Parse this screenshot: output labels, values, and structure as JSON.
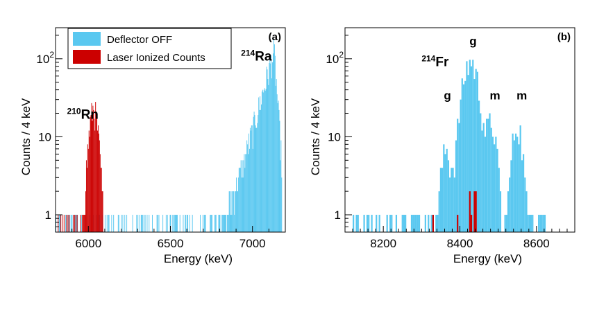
{
  "chart_data": [
    {
      "panel": "a",
      "type": "histogram",
      "title": "",
      "panel_label": "(a)",
      "xlabel": "Energy (keV)",
      "ylabel": "Counts / 4 keV",
      "xlim": [
        5800,
        7200
      ],
      "ylim": [
        0.6,
        250
      ],
      "yscale": "log",
      "bin_width": 4,
      "xticks": [
        6000,
        6500,
        7000
      ],
      "yticks": [
        {
          "value": 1,
          "label": "1"
        },
        {
          "value": 10,
          "label": "10"
        },
        {
          "value": 100,
          "label": "10",
          "sup": "2"
        }
      ],
      "legend": {
        "placement": "top-left",
        "entries": [
          {
            "name": "Deflector OFF",
            "color": "#5ac8f0"
          },
          {
            "name": "Laser Ionized Counts",
            "color": "#cc0000"
          }
        ]
      },
      "annotations": [
        {
          "text": "Rn",
          "sup": "210",
          "x": 5870,
          "y": 17
        },
        {
          "text": "Ra",
          "sup": "214",
          "x": 6930,
          "y": 95
        }
      ],
      "series": [
        {
          "name": "Deflector OFF",
          "color": "#5ac8f0",
          "kind": "rising-peak",
          "peak_center": 7130,
          "peak_value": 130,
          "range": [
            5800,
            7180
          ]
        },
        {
          "name": "Laser Ionized Counts",
          "color": "#cc0000",
          "kind": "peak",
          "peak_center": 6030,
          "peak_value": 22,
          "range": [
            5810,
            6090
          ]
        }
      ]
    },
    {
      "panel": "b",
      "type": "histogram",
      "title": "",
      "panel_label": "(b)",
      "xlabel": "Energy (keV)",
      "ylabel": "Counts / 4 keV",
      "xlim": [
        8100,
        8700
      ],
      "ylim": [
        0.6,
        250
      ],
      "yscale": "log",
      "bin_width": 4,
      "xticks": [
        8200,
        8400,
        8600
      ],
      "yticks": [
        {
          "value": 1,
          "label": "1"
        },
        {
          "value": 10,
          "label": "10"
        },
        {
          "value": 100,
          "label": "10",
          "sup": "2"
        }
      ],
      "annotations": [
        {
          "text": "Fr",
          "sup": "214",
          "x": 8300,
          "y": 80
        },
        {
          "text": "g",
          "x": 8425,
          "y": 150
        },
        {
          "text": "g",
          "x": 8358,
          "y": 30
        },
        {
          "text": "m",
          "x": 8478,
          "y": 30
        },
        {
          "text": "m",
          "x": 8548,
          "y": 30
        }
      ],
      "series": [
        {
          "name": "Deflector OFF",
          "color": "#5ac8f0",
          "kind": "multi-peak",
          "peaks": [
            {
              "center": 8362,
              "value": 6
            },
            {
              "center": 8426,
              "value": 90
            },
            {
              "center": 8480,
              "value": 14
            },
            {
              "center": 8548,
              "value": 14
            }
          ],
          "range": [
            8120,
            8700
          ]
        },
        {
          "name": "Laser Ionized Counts",
          "color": "#cc0000",
          "kind": "sparse",
          "bins": [
            {
              "x": 8328,
              "y": 1
            },
            {
              "x": 8392,
              "y": 1
            },
            {
              "x": 8424,
              "y": 2
            },
            {
              "x": 8428,
              "y": 1
            },
            {
              "x": 8436,
              "y": 2
            },
            {
              "x": 8440,
              "y": 2
            }
          ],
          "range": [
            8120,
            8700
          ]
        }
      ]
    }
  ]
}
